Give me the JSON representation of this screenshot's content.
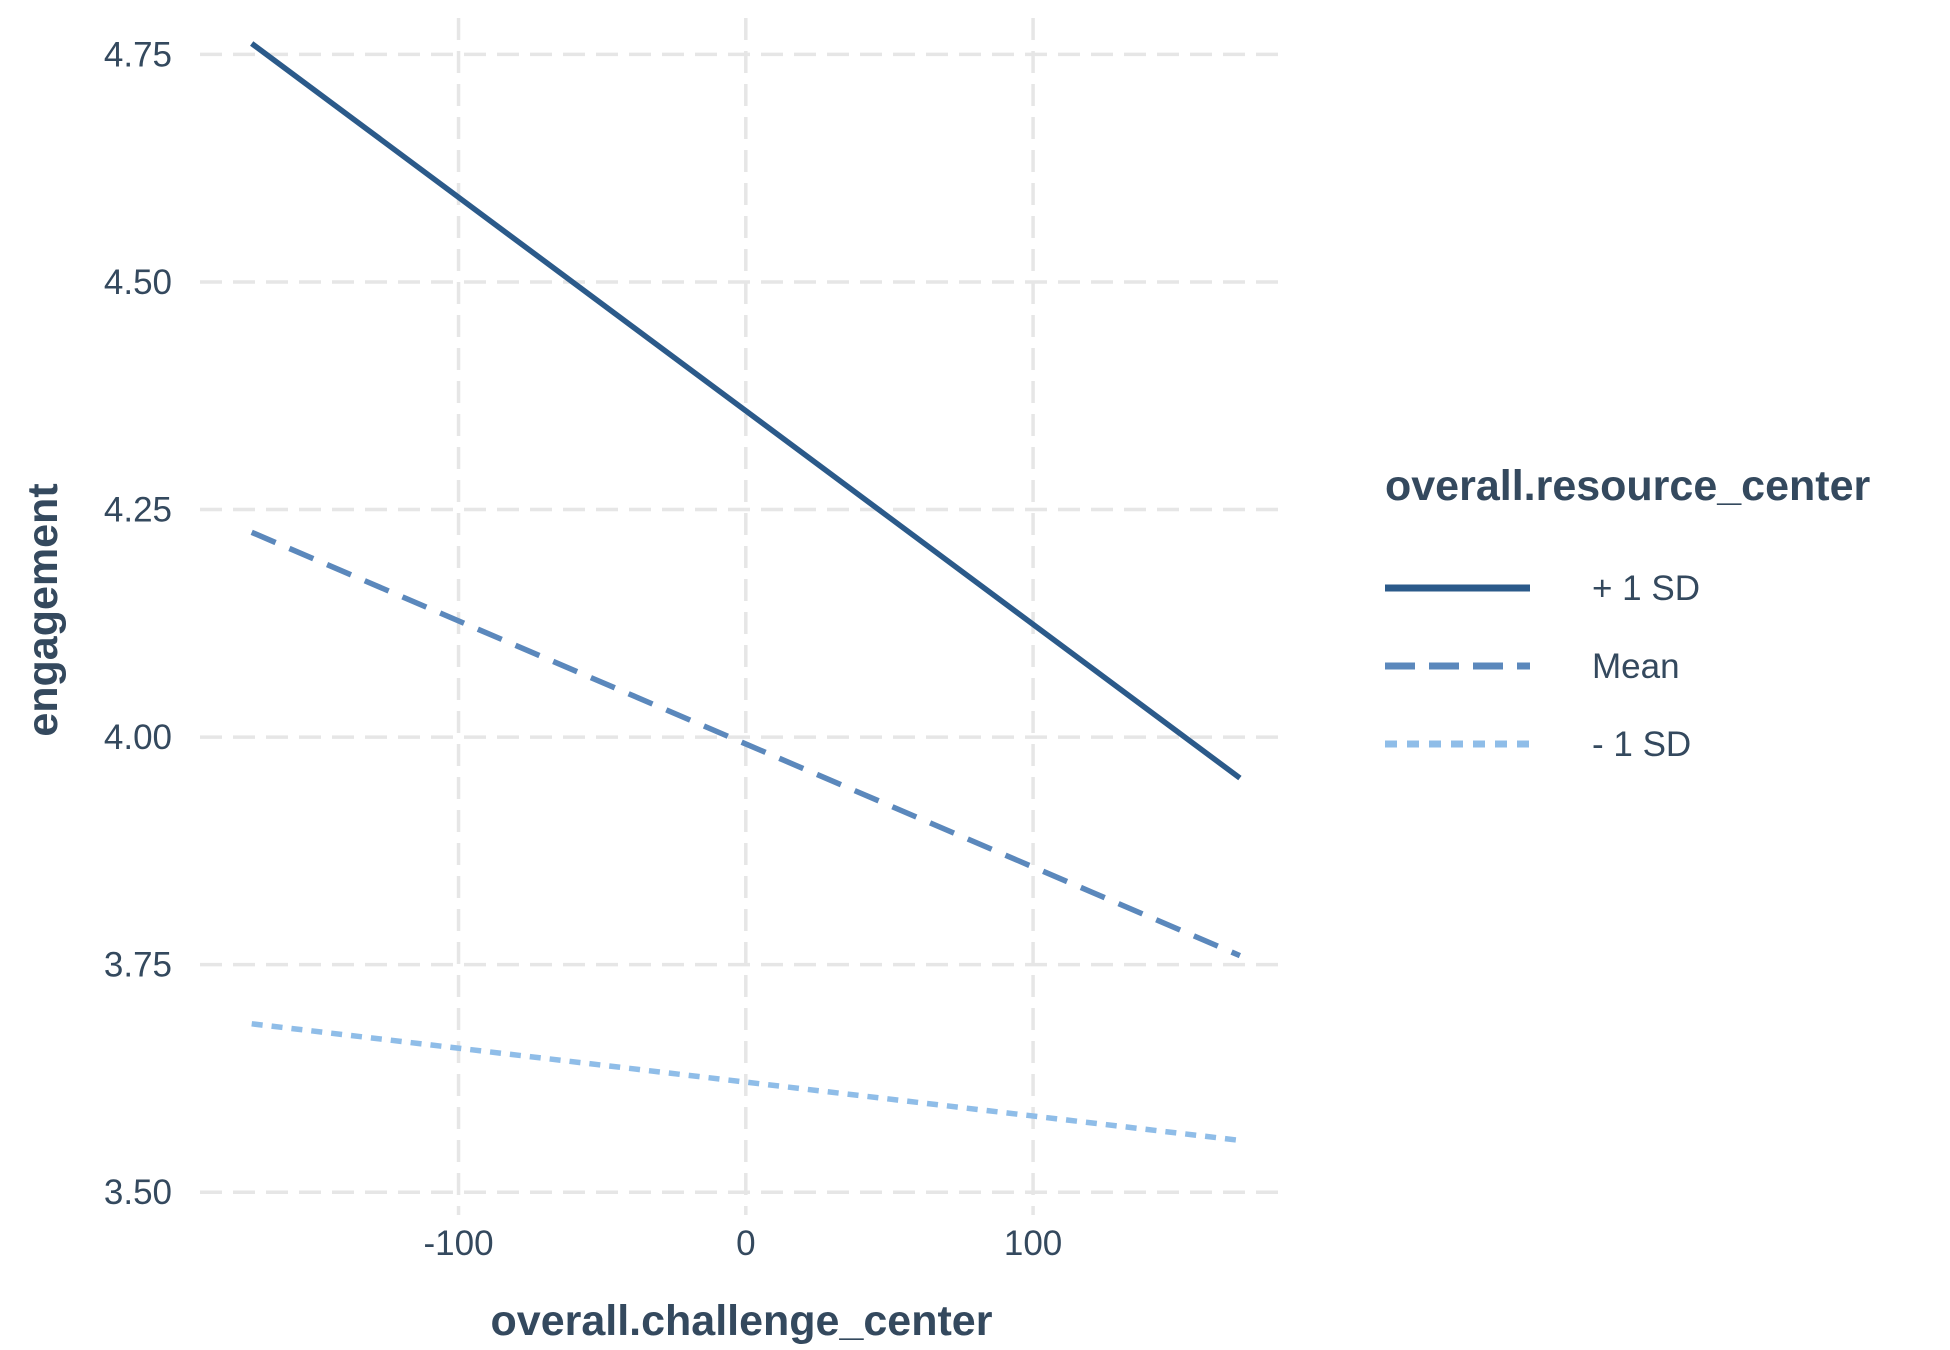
{
  "chart_data": {
    "type": "line",
    "title": "",
    "xlabel": "overall.challenge_center",
    "ylabel": "engagement",
    "xlim": [
      -190,
      187
    ],
    "ylim": [
      3.475,
      4.79
    ],
    "xticks": [
      -100,
      0,
      100
    ],
    "xtick_labels": [
      "-100",
      "0",
      "100"
    ],
    "yticks": [
      3.5,
      3.75,
      4.0,
      4.25,
      4.5,
      4.75
    ],
    "ytick_labels": [
      "3.50",
      "3.75",
      "4.00",
      "4.25",
      "4.50",
      "4.75"
    ],
    "grid": true,
    "legend_position": "right",
    "legend_title": "overall.resource_center",
    "series": [
      {
        "name": "+ 1 SD",
        "color": "#2b5a8a",
        "dash": "solid",
        "x": [
          -172,
          172
        ],
        "y": [
          4.762,
          3.955
        ]
      },
      {
        "name": "Mean",
        "color": "#5b88bc",
        "dash": "dashed",
        "x": [
          -172,
          172
        ],
        "y": [
          4.225,
          3.76
        ]
      },
      {
        "name": "- 1 SD",
        "color": "#8fbde8",
        "dash": "dotted",
        "x": [
          -172,
          172
        ],
        "y": [
          3.685,
          3.557
        ]
      }
    ]
  }
}
